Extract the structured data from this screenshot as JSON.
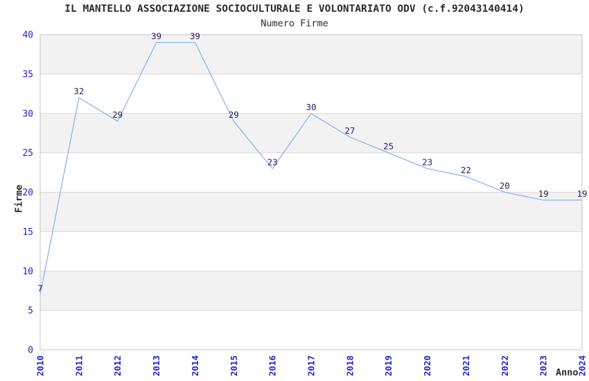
{
  "header": {
    "title": "IL MANTELLO ASSOCIAZIONE SOCIOCULTURALE E VOLONTARIATO ODV (c.f.92043140414)",
    "subtitle": "Numero Firme"
  },
  "chart_data": {
    "type": "line",
    "title": "IL MANTELLO ASSOCIAZIONE SOCIOCULTURALE E VOLONTARIATO ODV (c.f.92043140414)",
    "subtitle": "Numero Firme",
    "xlabel": "Anno",
    "ylabel": "Firme",
    "categories": [
      "2010",
      "2011",
      "2012",
      "2013",
      "2014",
      "2015",
      "2016",
      "2017",
      "2018",
      "2019",
      "2020",
      "2021",
      "2022",
      "2023",
      "2024"
    ],
    "values": [
      7,
      32,
      29,
      39,
      39,
      29,
      23,
      30,
      27,
      25,
      23,
      22,
      20,
      19,
      19
    ],
    "ylim": [
      0,
      40
    ],
    "ytick_step": 5,
    "yticks": [
      0,
      5,
      10,
      15,
      20,
      25,
      30,
      35,
      40
    ],
    "grid": true,
    "alternating_bands": true,
    "legend_position": "none",
    "data_labels_shown": true,
    "colors": {
      "line": "#88b6ea",
      "tick_label": "#2323cf",
      "data_label": "#242466",
      "band_gray": "#f2f2f2",
      "band_white": "#ffffff",
      "gridline": "#d9d9d9",
      "border": "#c6c6c6",
      "text": "#2b2b2b",
      "background": "#ffffff"
    }
  }
}
